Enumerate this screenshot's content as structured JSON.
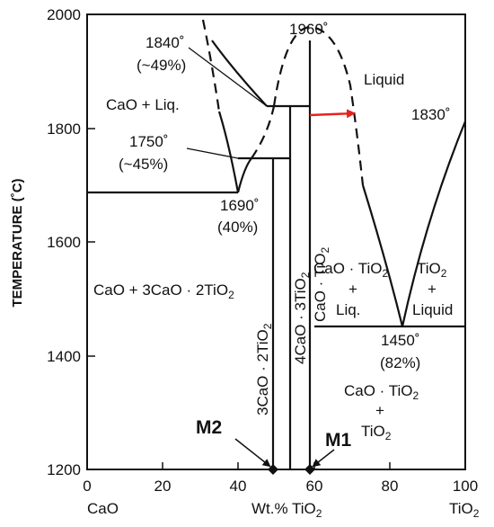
{
  "axes": {
    "y_title": "TEMPERATURE (˚C)",
    "y_ticks": [
      "2000",
      "1800",
      "1600",
      "1400",
      "1200"
    ],
    "x_ticks": [
      "0",
      "20",
      "40",
      "60",
      "80",
      "100"
    ],
    "x_left_component": "CaO",
    "x_title": "Wt.% TiO",
    "x_title_sub": "2",
    "x_right_component": "TiO",
    "x_right_sub": "2"
  },
  "points": {
    "p1840": "1840˚",
    "p1840_pct": "(~49%)",
    "p1960": "1960˚",
    "p1830": "1830˚",
    "p1750": "1750˚",
    "p1750_pct": "(~45%)",
    "p1690": "1690˚",
    "p1690_pct": "(40%)",
    "p1450": "1450˚",
    "p1450_pct": "(82%)"
  },
  "regions": {
    "liquid": "Liquid",
    "cao_liq": "CaO + Liq.",
    "cao_c3t2": "CaO + 3CaO · 2TiO",
    "cao_c3t2_sub": "2",
    "ct_liq_1": "CaO · TiO",
    "ct_liq_sub": "2",
    "ct_liq_2": "+",
    "ct_liq_3": "Liq.",
    "tio2_liq_1": "TiO",
    "tio2_liq_sub": "2",
    "tio2_liq_2": "+",
    "tio2_liq_3": "Liquid",
    "ct_tio2_1": "CaO · TiO",
    "ct_tio2_sub": "2",
    "ct_tio2_2": "+",
    "ct_tio2_3": "TiO",
    "ct_tio2_3_sub": "2"
  },
  "compounds": {
    "c3t2": "3CaO · 2TiO",
    "c3t2_sub": "2",
    "c4t3": "4CaO · 3TiO",
    "c4t3_sub": "2",
    "ct": "CaO · TiO",
    "ct_sub": "2"
  },
  "markers": {
    "m1": "M1",
    "m2": "M2"
  },
  "colors": {
    "line": "#111111",
    "arrow": "#e8211d"
  }
}
